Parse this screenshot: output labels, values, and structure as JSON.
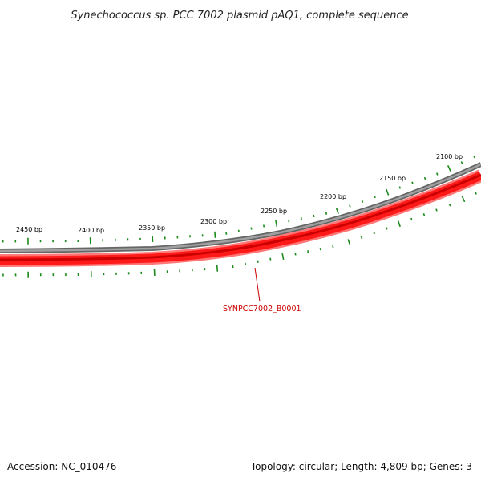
{
  "title": "Synechococcus sp. PCC 7002 plasmid pAQ1, complete sequence",
  "accession_text": "Accession: NC_010476",
  "summary_text": "Topology: circular; Length: 4,809 bp; Genes: 3",
  "scale_labels": [
    "2450 bp",
    "2400 bp",
    "2350 bp",
    "2300 bp",
    "2250 bp",
    "2200 bp",
    "2150 bp",
    "2100 bp"
  ],
  "genes": [
    {
      "name": "SYNPCC7002_B0001",
      "label": "SYNPCC7002_B0001"
    }
  ],
  "colors": {
    "backbone": "#808080",
    "gene_fill": "#ff0000",
    "gene_dark": "#d80000",
    "gene_light": "#ff7070",
    "tick": "#1a8a1a",
    "gene_label": "#cc0000"
  }
}
